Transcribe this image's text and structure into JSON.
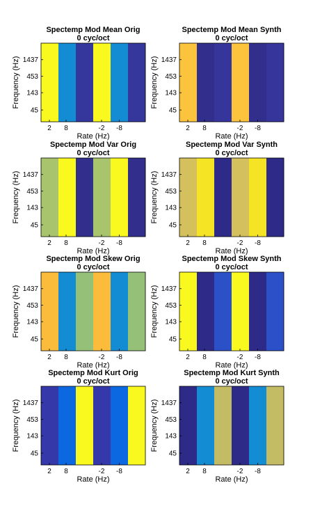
{
  "chart_data": [
    {
      "type": "heatmap",
      "title": "Spectemp Mod Mean Orig",
      "subtitle": "0 cyc/oct",
      "xlabel": "Rate (Hz)",
      "ylabel": "Frequency (Hz)",
      "xticks": [
        "2",
        "8",
        "-2",
        "-8"
      ],
      "yticks": [
        "1437",
        "453",
        "143",
        "45"
      ],
      "columns": [
        "#f9f920",
        "#148cd4",
        "#35379c",
        "#f9f920",
        "#148cd4",
        "#35379c"
      ]
    },
    {
      "type": "heatmap",
      "title": "Spectemp Mod Mean Synth",
      "subtitle": "0 cyc/oct",
      "xlabel": "Rate (Hz)",
      "ylabel": "Frequency (Hz)",
      "xticks": [
        "2",
        "8",
        "-2",
        "-8"
      ],
      "yticks": [
        "1437",
        "453",
        "143",
        "45"
      ],
      "columns": [
        "#fbc43c",
        "#312e8c",
        "#35359c",
        "#fbc43c",
        "#312e8c",
        "#35359c"
      ]
    },
    {
      "type": "heatmap",
      "title": "Spectemp Mod Var Orig",
      "subtitle": "0 cyc/oct",
      "xlabel": "Rate (Hz)",
      "ylabel": "Frequency (Hz)",
      "xticks": [
        "2",
        "8",
        "-2",
        "-8"
      ],
      "yticks": [
        "1437",
        "453",
        "143",
        "45"
      ],
      "columns": [
        "#a8c46c",
        "#f9f920",
        "#312e8c",
        "#a8c46c",
        "#f9f920",
        "#312e8c"
      ]
    },
    {
      "type": "heatmap",
      "title": "Spectemp Mod Var Synth",
      "subtitle": "0 cyc/oct",
      "xlabel": "Rate (Hz)",
      "ylabel": "Frequency (Hz)",
      "xticks": [
        "2",
        "8",
        "-2",
        "-8"
      ],
      "yticks": [
        "1437",
        "453",
        "143",
        "45"
      ],
      "columns": [
        "#d4c05c",
        "#f4e424",
        "#2d2a88",
        "#d4c05c",
        "#f4e424",
        "#2d2a88"
      ]
    },
    {
      "type": "heatmap",
      "title": "Spectemp Mod Skew Orig",
      "subtitle": "0 cyc/oct",
      "xlabel": "Rate (Hz)",
      "ylabel": "Frequency (Hz)",
      "xticks": [
        "2",
        "8",
        "-2",
        "-8"
      ],
      "yticks": [
        "1437",
        "453",
        "143",
        "45"
      ],
      "columns": [
        "#fbbc3c",
        "#148cd4",
        "#94c078",
        "#fbbc3c",
        "#148cd4",
        "#94c078"
      ]
    },
    {
      "type": "heatmap",
      "title": "Spectemp Mod Skew Synth",
      "subtitle": "0 cyc/oct",
      "xlabel": "Rate (Hz)",
      "ylabel": "Frequency (Hz)",
      "xticks": [
        "2",
        "8",
        "-2",
        "-8"
      ],
      "yticks": [
        "1437",
        "453",
        "143",
        "45"
      ],
      "columns": [
        "#f9f920",
        "#2d2a88",
        "#2c50c8",
        "#f9f920",
        "#2d2a88",
        "#2c50c8"
      ]
    },
    {
      "type": "heatmap",
      "title": "Spectemp Mod Kurt Orig",
      "subtitle": "0 cyc/oct",
      "xlabel": "Rate (Hz)",
      "ylabel": "Frequency (Hz)",
      "xticks": [
        "2",
        "8",
        "-2",
        "-8"
      ],
      "yticks": [
        "1437",
        "453",
        "143",
        "45"
      ],
      "columns": [
        "#3538a8",
        "#0c68e0",
        "#f9f920",
        "#3538a8",
        "#0c68e0",
        "#f9f920"
      ]
    },
    {
      "type": "heatmap",
      "title": "Spectemp Mod Kurt Synth",
      "subtitle": "0 cyc/oct",
      "xlabel": "Rate (Hz)",
      "ylabel": "Frequency (Hz)",
      "xticks": [
        "2",
        "8",
        "-2",
        "-8"
      ],
      "yticks": [
        "1437",
        "453",
        "143",
        "45"
      ],
      "columns": [
        "#2d2a88",
        "#148cd4",
        "#c4bc64",
        "#2d2a88",
        "#148cd4",
        "#c4bc64"
      ]
    }
  ]
}
